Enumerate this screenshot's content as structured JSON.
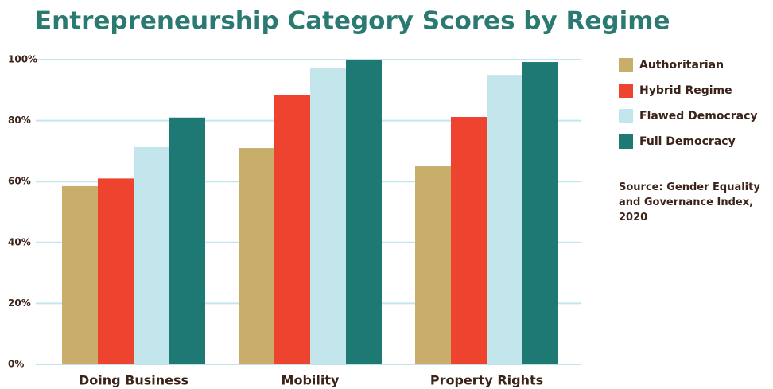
{
  "chart_data": {
    "type": "bar",
    "title": "Entrepreneurship Category Scores by Regime",
    "categories": [
      "Doing Business",
      "Mobility",
      "Property Rights"
    ],
    "series": [
      {
        "name": "Authoritarian",
        "color": "#c8ad6b",
        "values": [
          58.5,
          71,
          65
        ]
      },
      {
        "name": "Hybrid Regime",
        "color": "#ee432f",
        "values": [
          61,
          88.3,
          81.2
        ]
      },
      {
        "name": "Flawed Democracy",
        "color": "#c2e6ec",
        "values": [
          71.3,
          97.4,
          95
        ]
      },
      {
        "name": "Full Democracy",
        "color": "#1e7874",
        "values": [
          81,
          100,
          99.2
        ]
      }
    ],
    "ylim": [
      0,
      100
    ],
    "yticks": [
      {
        "value": 0,
        "label": "0%"
      },
      {
        "value": 20,
        "label": "20%"
      },
      {
        "value": 40,
        "label": "40%"
      },
      {
        "value": 60,
        "label": "60%"
      },
      {
        "value": 80,
        "label": "80%"
      },
      {
        "value": 100,
        "label": "100%"
      }
    ],
    "grid": true,
    "legend": "right",
    "source": "Source: Gender Equality and Governance Index, 2020"
  }
}
